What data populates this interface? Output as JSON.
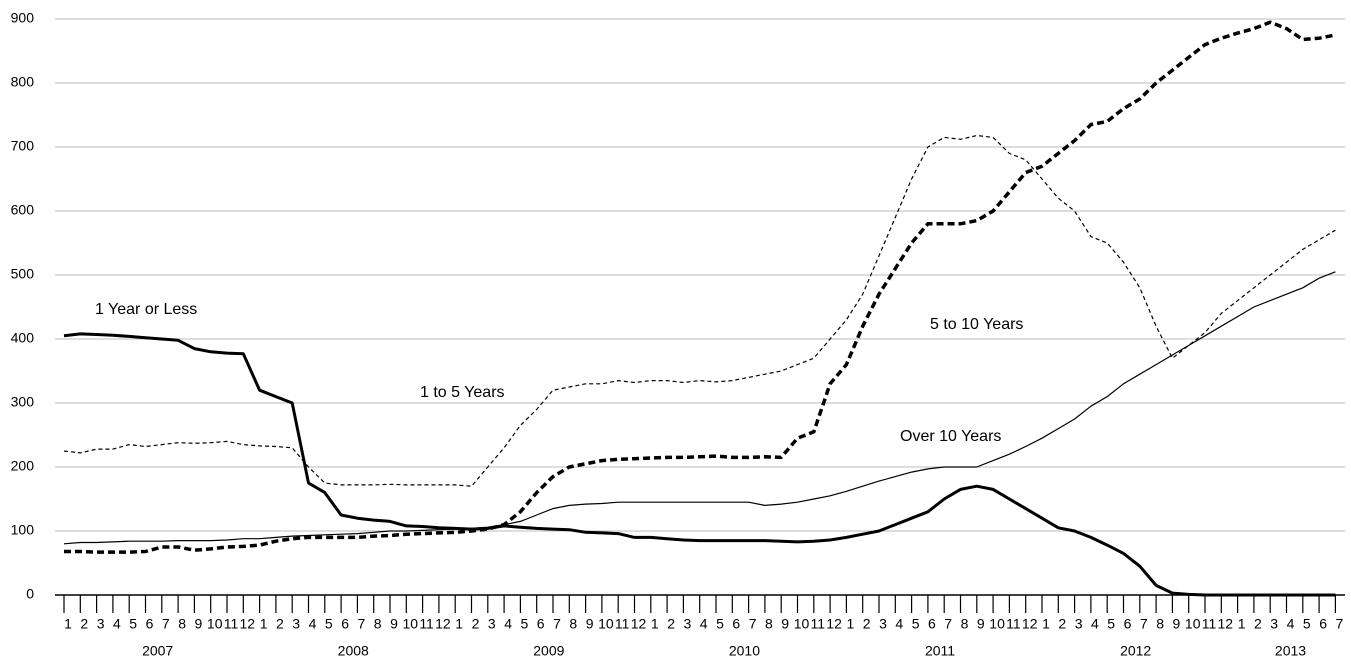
{
  "chart_data": {
    "type": "line",
    "categories": [
      "1",
      "2",
      "3",
      "4",
      "5",
      "6",
      "7",
      "8",
      "9",
      "10",
      "11",
      "12",
      "1",
      "2",
      "3",
      "4",
      "5",
      "6",
      "7",
      "8",
      "9",
      "10",
      "11",
      "12",
      "1",
      "2",
      "3",
      "4",
      "5",
      "6",
      "7",
      "8",
      "9",
      "10",
      "11",
      "12",
      "1",
      "2",
      "3",
      "4",
      "5",
      "6",
      "7",
      "8",
      "9",
      "10",
      "11",
      "12",
      "1",
      "2",
      "3",
      "4",
      "5",
      "6",
      "7",
      "8",
      "9",
      "10",
      "11",
      "12",
      "1",
      "2",
      "3",
      "4",
      "5",
      "6",
      "7",
      "8",
      "9",
      "10",
      "11",
      "12",
      "1",
      "2",
      "3",
      "4",
      "5",
      "6",
      "7"
    ],
    "years": [
      "2007",
      "2008",
      "2009",
      "2010",
      "2011",
      "2012",
      "2013"
    ],
    "ylim": [
      0,
      900
    ],
    "yticks": [
      0,
      100,
      200,
      300,
      400,
      500,
      600,
      700,
      800,
      900
    ],
    "grid": true,
    "series": [
      {
        "name": "1 Year or Less",
        "color": "#000000",
        "values": [
          405,
          408,
          407,
          406,
          404,
          402,
          400,
          398,
          385,
          380,
          378,
          377,
          320,
          310,
          300,
          175,
          160,
          125,
          120,
          117,
          115,
          108,
          107,
          105,
          104,
          103,
          104,
          108,
          106,
          104,
          103,
          102,
          98,
          97,
          96,
          90,
          90,
          88,
          86,
          85,
          85,
          85,
          85,
          85,
          84,
          83,
          84,
          86,
          90,
          95,
          100,
          110,
          120,
          130,
          150,
          165,
          170,
          165,
          150,
          135,
          120,
          105,
          100,
          90,
          78,
          65,
          45,
          15,
          3,
          1,
          0,
          0,
          0,
          0,
          0,
          0,
          0,
          0,
          0
        ]
      },
      {
        "name": "1 to 5 Years",
        "color": "#000000",
        "values": [
          225,
          222,
          228,
          228,
          235,
          232,
          235,
          238,
          237,
          238,
          240,
          235,
          233,
          232,
          230,
          200,
          175,
          172,
          172,
          172,
          173,
          172,
          172,
          172,
          172,
          170,
          200,
          230,
          265,
          290,
          320,
          325,
          330,
          330,
          335,
          332,
          335,
          335,
          332,
          335,
          333,
          335,
          340,
          345,
          350,
          360,
          370,
          400,
          430,
          470,
          530,
          590,
          650,
          700,
          715,
          712,
          718,
          715,
          690,
          680,
          650,
          620,
          600,
          560,
          550,
          520,
          480,
          420,
          370,
          390,
          410,
          440,
          460,
          480,
          500,
          520,
          540,
          555,
          570
        ]
      },
      {
        "name": "5 to 10 Years",
        "color": "#000000",
        "values": [
          68,
          68,
          67,
          67,
          67,
          68,
          75,
          75,
          70,
          72,
          75,
          76,
          78,
          84,
          88,
          90,
          90,
          90,
          90,
          92,
          93,
          95,
          96,
          97,
          98,
          100,
          103,
          110,
          130,
          160,
          185,
          200,
          205,
          210,
          212,
          213,
          214,
          215,
          215,
          216,
          217,
          215,
          215,
          216,
          215,
          245,
          255,
          330,
          360,
          420,
          470,
          510,
          550,
          580,
          580,
          580,
          585,
          600,
          630,
          660,
          670,
          690,
          710,
          735,
          740,
          760,
          775,
          800,
          820,
          840,
          860,
          870,
          878,
          885,
          895,
          885,
          868,
          870,
          875
        ]
      },
      {
        "name": "Over 10 Years",
        "color": "#000000",
        "values": [
          80,
          82,
          82,
          83,
          84,
          84,
          84,
          85,
          85,
          85,
          86,
          88,
          88,
          90,
          92,
          93,
          94,
          95,
          96,
          98,
          100,
          100,
          101,
          102,
          103,
          104,
          106,
          110,
          115,
          125,
          135,
          140,
          142,
          143,
          145,
          145,
          145,
          145,
          145,
          145,
          145,
          145,
          145,
          140,
          142,
          145,
          150,
          155,
          162,
          170,
          178,
          185,
          192,
          197,
          200,
          200,
          200,
          210,
          220,
          232,
          245,
          260,
          275,
          295,
          310,
          330,
          345,
          360,
          375,
          390,
          405,
          420,
          435,
          450,
          460,
          470,
          480,
          495,
          505
        ]
      }
    ]
  }
}
